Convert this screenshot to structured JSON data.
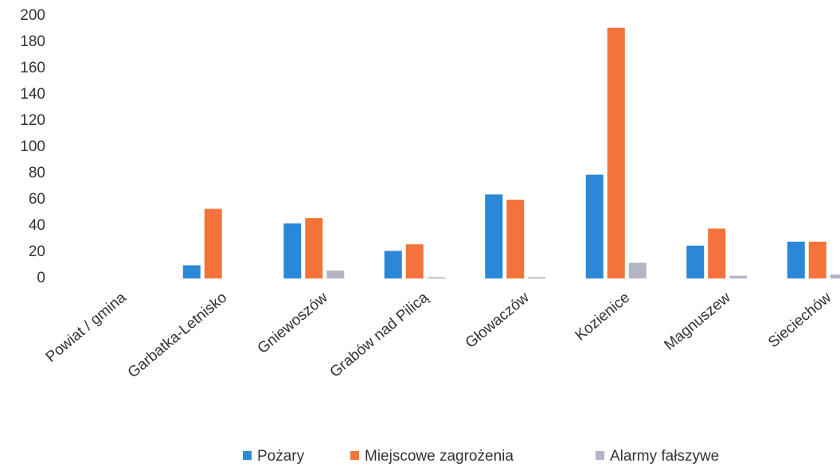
{
  "chart_data": {
    "type": "bar",
    "categories": [
      "Powiat / gmina",
      "Garbatka-Letnisko",
      "Gniewoszów",
      "Grabów nad Pilicą",
      "Głowaczów",
      "Kozienice",
      "Magnuszew",
      "Sieciechów"
    ],
    "series": [
      {
        "name": "Pożary",
        "color": "#2b87d8",
        "values": [
          null,
          10,
          42,
          21,
          64,
          79,
          25,
          28
        ]
      },
      {
        "name": "Miejscowe zagrożenia",
        "color": "#f4733b",
        "values": [
          null,
          53,
          46,
          26,
          60,
          191,
          38,
          28
        ]
      },
      {
        "name": "Alarmy fałszywe",
        "color": "#b4b4c6",
        "values": [
          null,
          0,
          6,
          1,
          1,
          12,
          2,
          3
        ]
      }
    ],
    "ylim": [
      0,
      200
    ],
    "yticks": [
      0,
      20,
      40,
      60,
      80,
      100,
      120,
      140,
      160,
      180,
      200
    ],
    "grid": false,
    "legend": "bottom"
  }
}
